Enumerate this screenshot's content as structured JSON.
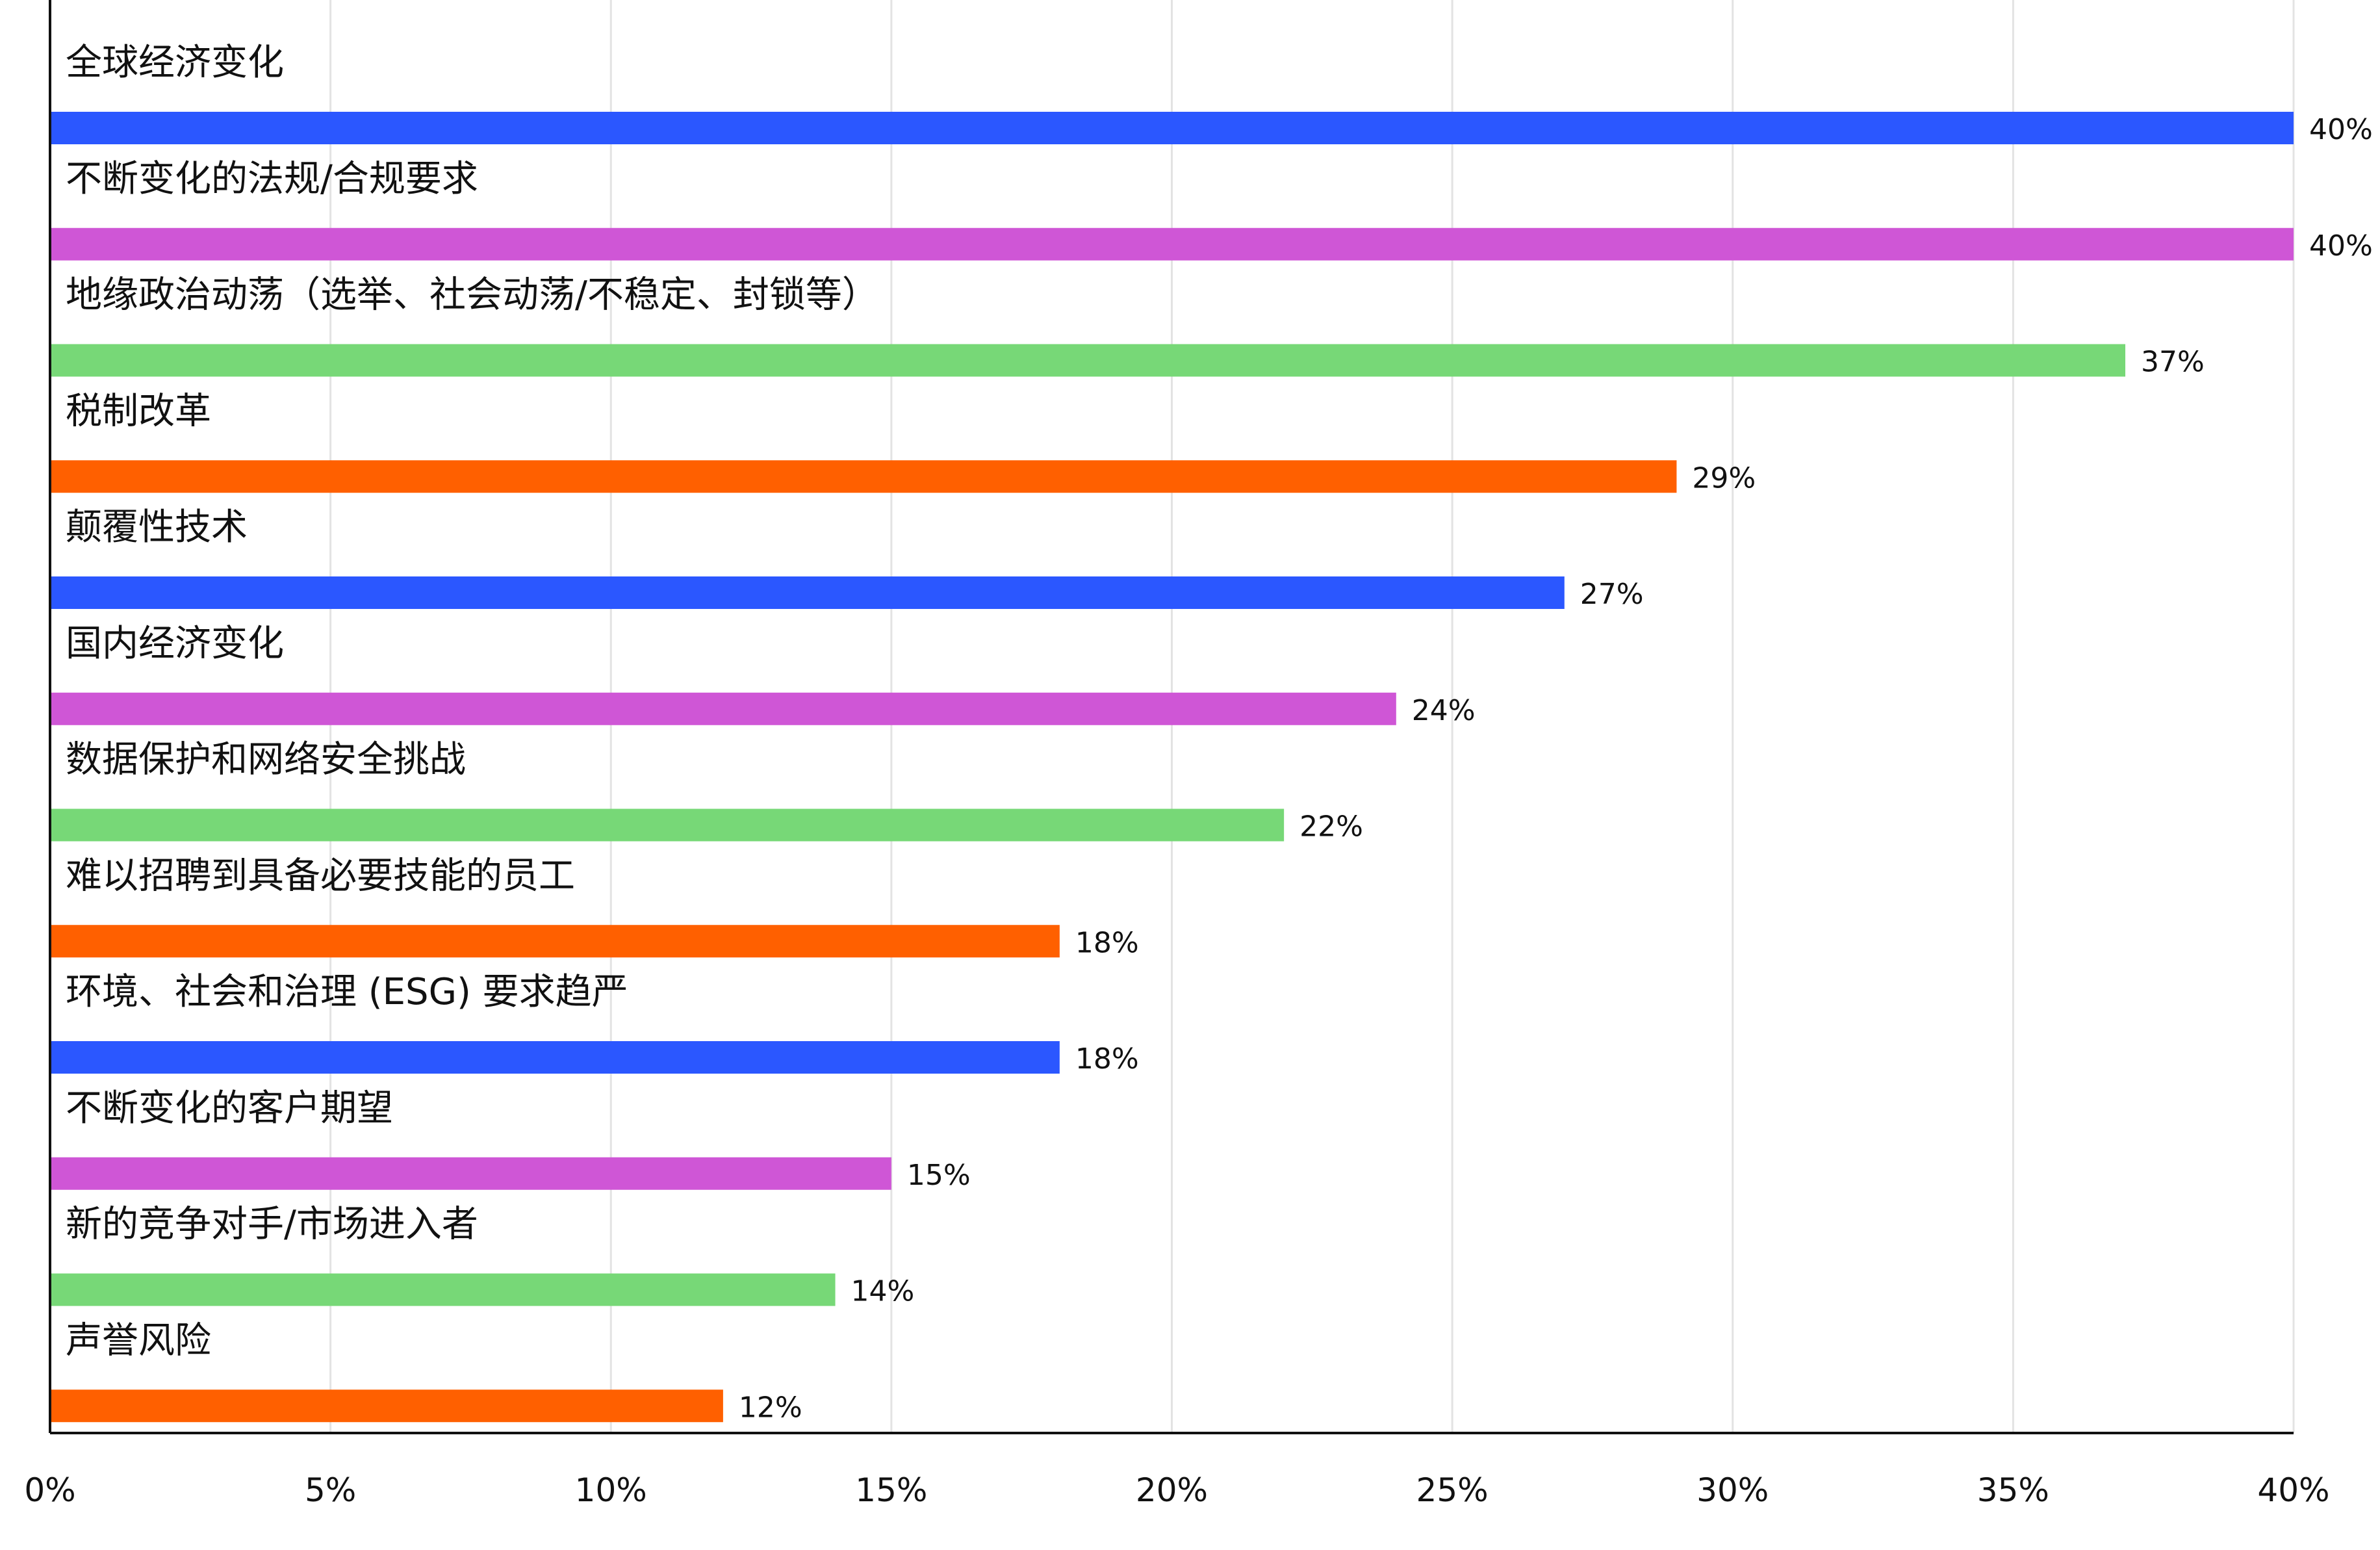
{
  "chart_data": {
    "type": "bar",
    "orientation": "horizontal",
    "categories": [
      "全球经济变化",
      "不断变化的法规/合规要求",
      "地缘政治动荡（选举、社会动荡/不稳定、封锁等）",
      "税制改革",
      "颠覆性技术",
      "国内经济变化",
      "数据保护和网络安全挑战",
      "难以招聘到具备必要技能的员工",
      "环境、社会和治理 (ESG) 要求趋严",
      "不断变化的客户期望",
      "新的竞争对手/市场进入者",
      "声誉风险"
    ],
    "values": [
      40,
      40,
      37,
      29,
      27,
      24,
      22,
      18,
      18,
      15,
      14,
      12
    ],
    "value_labels": [
      "40%",
      "40%",
      "37%",
      "29%",
      "27%",
      "24%",
      "22%",
      "18%",
      "18%",
      "15%",
      "14%",
      "12%"
    ],
    "bar_colors": [
      "#2b57ff",
      "#cf56d6",
      "#77d877",
      "#ff6000",
      "#2b57ff",
      "#cf56d6",
      "#77d877",
      "#ff6000",
      "#2b57ff",
      "#cf56d6",
      "#77d877",
      "#ff6000"
    ],
    "xlim": [
      0,
      40
    ],
    "x_ticks": [
      0,
      5,
      10,
      15,
      20,
      25,
      30,
      35,
      40
    ],
    "x_tick_labels": [
      "0%",
      "5%",
      "10%",
      "15%",
      "20%",
      "25%",
      "30%",
      "35%",
      "40%"
    ],
    "grid": true,
    "legend": "none"
  }
}
